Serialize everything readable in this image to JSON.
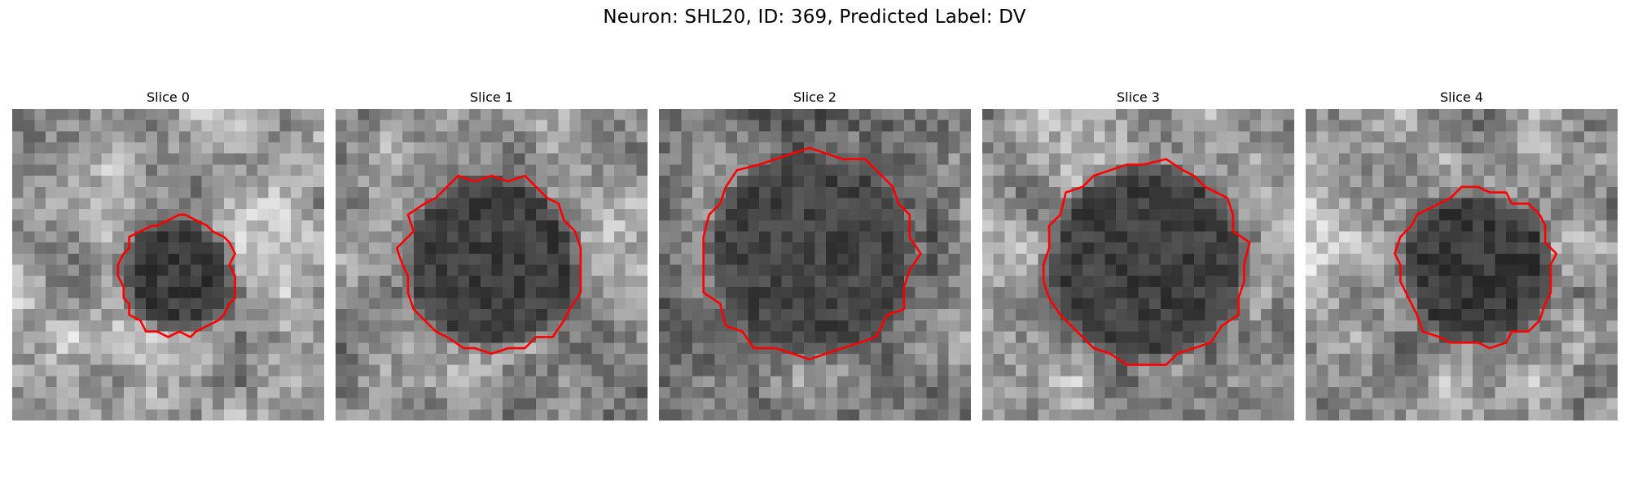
{
  "figure": {
    "title": "Neuron: SHL20, ID: 369, Predicted Label: DV"
  },
  "colors": {
    "contour": "#ff0000",
    "background": "#ffffff"
  },
  "panels": [
    {
      "title": "Slice 0"
    },
    {
      "title": "Slice 1"
    },
    {
      "title": "Slice 2"
    },
    {
      "title": "Slice 3"
    },
    {
      "title": "Slice 4"
    }
  ]
}
